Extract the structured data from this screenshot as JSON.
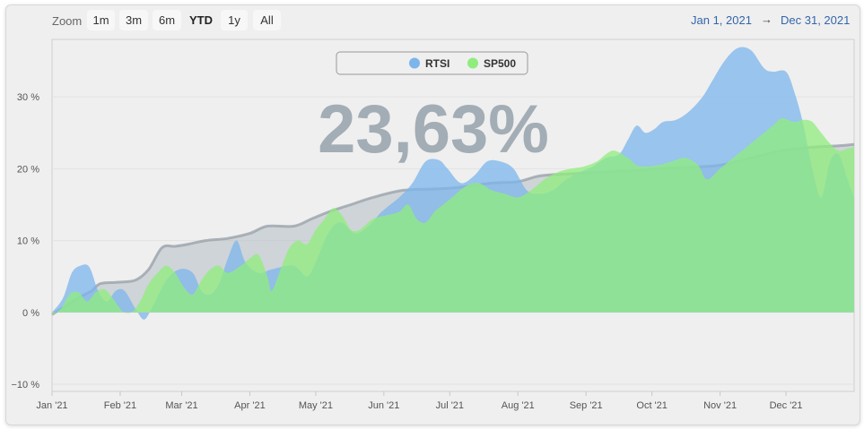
{
  "toolbar": {
    "zoom_label": "Zoom",
    "buttons": [
      {
        "label": "1m",
        "active": false
      },
      {
        "label": "3m",
        "active": false
      },
      {
        "label": "6m",
        "active": false
      },
      {
        "label": "YTD",
        "active": true
      },
      {
        "label": "1y",
        "active": false
      },
      {
        "label": "All",
        "active": false
      }
    ],
    "range_from": "Jan 1, 2021",
    "range_arrow": "→",
    "range_to": "Dec 31, 2021"
  },
  "big_value": "23,63%",
  "colors": {
    "rtsi": "#7cb5ec",
    "sp500": "#90ed7d",
    "navigator": "#a9b3bc"
  },
  "chart_data": {
    "type": "area",
    "ylim": [
      -11,
      38
    ],
    "y_ticks": [
      {
        "value": 30,
        "label": "30 %"
      },
      {
        "value": 20,
        "label": "20 %"
      },
      {
        "value": 10,
        "label": "10 %"
      },
      {
        "value": 0,
        "label": "0 %"
      },
      {
        "value": -10,
        "label": "−10 %"
      }
    ],
    "x_ticks": [
      {
        "day": 0,
        "label": "Jan '21"
      },
      {
        "day": 31,
        "label": "Feb '21"
      },
      {
        "day": 59,
        "label": "Mar '21"
      },
      {
        "day": 90,
        "label": "Apr '21"
      },
      {
        "day": 120,
        "label": "May '21"
      },
      {
        "day": 151,
        "label": "Jun '21"
      },
      {
        "day": 181,
        "label": "Jul '21"
      },
      {
        "day": 212,
        "label": "Aug '21"
      },
      {
        "day": 243,
        "label": "Sep '21"
      },
      {
        "day": 273,
        "label": "Oct '21"
      },
      {
        "day": 304,
        "label": "Nov '21"
      },
      {
        "day": 334,
        "label": "Dec '21"
      }
    ],
    "x_range": [
      0,
      365
    ],
    "legend_position": "top-center",
    "series": [
      {
        "name": "Navigator",
        "points": [
          [
            0,
            -0.3
          ],
          [
            12,
            2
          ],
          [
            18,
            3
          ],
          [
            22,
            4
          ],
          [
            30,
            4.2
          ],
          [
            38,
            4.5
          ],
          [
            44,
            6
          ],
          [
            50,
            9
          ],
          [
            56,
            9.2
          ],
          [
            62,
            9.5
          ],
          [
            70,
            10
          ],
          [
            80,
            10.3
          ],
          [
            90,
            11
          ],
          [
            98,
            12
          ],
          [
            110,
            12
          ],
          [
            118,
            13
          ],
          [
            126,
            14
          ],
          [
            136,
            15
          ],
          [
            146,
            16
          ],
          [
            160,
            17
          ],
          [
            176,
            17.2
          ],
          [
            188,
            17.5
          ],
          [
            200,
            18
          ],
          [
            212,
            18.2
          ],
          [
            222,
            19
          ],
          [
            236,
            19.3
          ],
          [
            248,
            19.5
          ],
          [
            262,
            19.7
          ],
          [
            276,
            20
          ],
          [
            290,
            20.2
          ],
          [
            304,
            20.5
          ],
          [
            318,
            21.5
          ],
          [
            332,
            22.5
          ],
          [
            346,
            23
          ],
          [
            358,
            23.2
          ],
          [
            365,
            23.4
          ]
        ]
      },
      {
        "name": "RTSI",
        "points": [
          [
            0,
            0
          ],
          [
            5,
            2
          ],
          [
            9,
            5.5
          ],
          [
            13,
            6.5
          ],
          [
            17,
            6.3
          ],
          [
            21,
            3
          ],
          [
            25,
            1.5
          ],
          [
            29,
            3
          ],
          [
            33,
            3
          ],
          [
            38,
            0.5
          ],
          [
            42,
            -1
          ],
          [
            46,
            1
          ],
          [
            52,
            4.5
          ],
          [
            58,
            6
          ],
          [
            64,
            5.5
          ],
          [
            68,
            3
          ],
          [
            72,
            2.5
          ],
          [
            76,
            4
          ],
          [
            80,
            7.5
          ],
          [
            84,
            10
          ],
          [
            88,
            7
          ],
          [
            94,
            5.5
          ],
          [
            100,
            6
          ],
          [
            110,
            6.5
          ],
          [
            116,
            5
          ],
          [
            120,
            7
          ],
          [
            124,
            10
          ],
          [
            128,
            12
          ],
          [
            132,
            12.5
          ],
          [
            138,
            11
          ],
          [
            144,
            12
          ],
          [
            150,
            14
          ],
          [
            158,
            16
          ],
          [
            164,
            18
          ],
          [
            170,
            21
          ],
          [
            176,
            21.2
          ],
          [
            180,
            20
          ],
          [
            186,
            18
          ],
          [
            192,
            19
          ],
          [
            198,
            21
          ],
          [
            204,
            21
          ],
          [
            210,
            20
          ],
          [
            216,
            17
          ],
          [
            222,
            16.5
          ],
          [
            228,
            17
          ],
          [
            234,
            18.5
          ],
          [
            240,
            19.5
          ],
          [
            246,
            20.3
          ],
          [
            252,
            21.5
          ],
          [
            258,
            22
          ],
          [
            262,
            24
          ],
          [
            266,
            26
          ],
          [
            270,
            25
          ],
          [
            274,
            25.5
          ],
          [
            278,
            26.5
          ],
          [
            284,
            26.8
          ],
          [
            290,
            28
          ],
          [
            296,
            30
          ],
          [
            300,
            32
          ],
          [
            306,
            35
          ],
          [
            312,
            36.8
          ],
          [
            318,
            36.5
          ],
          [
            324,
            34
          ],
          [
            328,
            33.5
          ],
          [
            334,
            33.5
          ],
          [
            338,
            30.5
          ],
          [
            342,
            26
          ],
          [
            346,
            20
          ],
          [
            350,
            16
          ],
          [
            354,
            21
          ],
          [
            358,
            22
          ],
          [
            362,
            18.5
          ],
          [
            365,
            16
          ]
        ]
      },
      {
        "name": "SP500",
        "points": [
          [
            0,
            -0.3
          ],
          [
            4,
            0.5
          ],
          [
            8,
            2.5
          ],
          [
            12,
            2.8
          ],
          [
            16,
            1.5
          ],
          [
            20,
            2.8
          ],
          [
            24,
            3.2
          ],
          [
            28,
            1.8
          ],
          [
            32,
            0.2
          ],
          [
            36,
            0
          ],
          [
            40,
            1.5
          ],
          [
            44,
            4
          ],
          [
            48,
            5.5
          ],
          [
            52,
            6.5
          ],
          [
            56,
            5.5
          ],
          [
            60,
            3.5
          ],
          [
            64,
            2.5
          ],
          [
            68,
            4.5
          ],
          [
            72,
            6
          ],
          [
            76,
            6.5
          ],
          [
            80,
            5.5
          ],
          [
            86,
            6.5
          ],
          [
            90,
            7.5
          ],
          [
            94,
            8
          ],
          [
            98,
            5
          ],
          [
            100,
            3
          ],
          [
            104,
            6
          ],
          [
            108,
            9
          ],
          [
            112,
            10
          ],
          [
            116,
            9.5
          ],
          [
            120,
            11.5
          ],
          [
            124,
            13
          ],
          [
            128,
            14.5
          ],
          [
            132,
            13.5
          ],
          [
            136,
            11.5
          ],
          [
            140,
            11.5
          ],
          [
            146,
            13
          ],
          [
            152,
            13.5
          ],
          [
            158,
            14
          ],
          [
            162,
            15
          ],
          [
            166,
            13
          ],
          [
            170,
            12.5
          ],
          [
            174,
            14
          ],
          [
            178,
            15
          ],
          [
            182,
            16
          ],
          [
            188,
            17.5
          ],
          [
            194,
            18
          ],
          [
            200,
            17
          ],
          [
            206,
            16.5
          ],
          [
            212,
            16
          ],
          [
            218,
            17
          ],
          [
            224,
            18.5
          ],
          [
            230,
            19.5
          ],
          [
            236,
            20
          ],
          [
            242,
            20.3
          ],
          [
            248,
            21
          ],
          [
            252,
            22
          ],
          [
            256,
            22.5
          ],
          [
            262,
            21.5
          ],
          [
            266,
            20.5
          ],
          [
            270,
            20.3
          ],
          [
            276,
            20.5
          ],
          [
            282,
            21
          ],
          [
            288,
            21.5
          ],
          [
            294,
            20.5
          ],
          [
            298,
            18.5
          ],
          [
            304,
            20
          ],
          [
            310,
            21.5
          ],
          [
            316,
            23
          ],
          [
            322,
            24.5
          ],
          [
            328,
            26
          ],
          [
            332,
            27
          ],
          [
            338,
            26.5
          ],
          [
            342,
            26.8
          ],
          [
            346,
            26.5
          ],
          [
            350,
            25
          ],
          [
            354,
            23.5
          ],
          [
            358,
            22.5
          ],
          [
            362,
            22.8
          ],
          [
            365,
            23
          ]
        ]
      }
    ],
    "legend": [
      {
        "label": "RTSI",
        "color": "#7cb5ec"
      },
      {
        "label": "SP500",
        "color": "#90ed7d"
      }
    ]
  }
}
